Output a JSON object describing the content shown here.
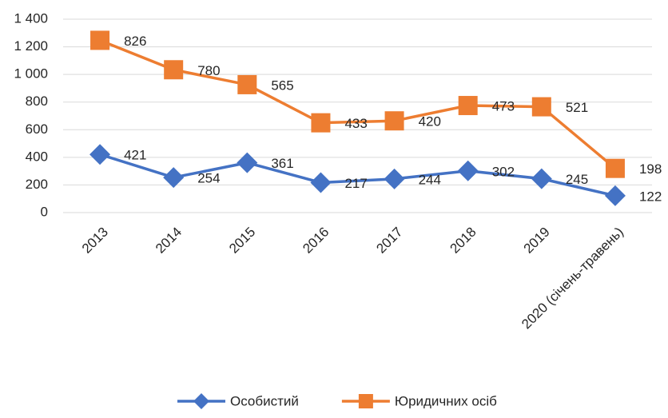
{
  "chart_data": {
    "type": "line",
    "stacked": true,
    "categories": [
      "2013",
      "2014",
      "2015",
      "2016",
      "2017",
      "2018",
      "2019",
      "2020 (січень-травень)"
    ],
    "series": [
      {
        "name": "Особистий",
        "color": "#4472c4",
        "marker": "diamond",
        "values": [
          421,
          254,
          361,
          217,
          244,
          302,
          245,
          122
        ]
      },
      {
        "name": "Юридичних осіб",
        "color": "#ed7d31",
        "marker": "square",
        "values": [
          826,
          780,
          565,
          433,
          420,
          473,
          521,
          198
        ]
      }
    ],
    "ylim": [
      0,
      1400
    ],
    "yticks": [
      0,
      200,
      400,
      600,
      800,
      {
        "value": 1000,
        "label": "1 000"
      },
      {
        "value": 1200,
        "label": "1 200"
      },
      {
        "value": 1400,
        "label": "1 400"
      }
    ],
    "grid": true,
    "legend": "bottom"
  }
}
